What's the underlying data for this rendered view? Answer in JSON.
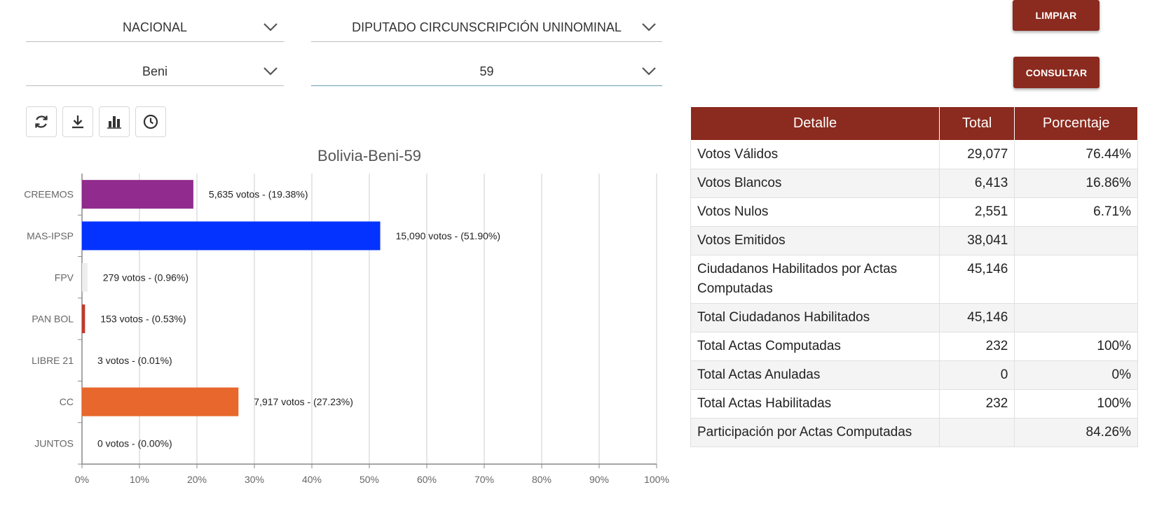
{
  "filters": {
    "scope": "NACIONAL",
    "election": "DIPUTADO CIRCUNSCRIPCIÓN UNINOMINAL",
    "department": "Beni",
    "circunscripcion": "59"
  },
  "actions": {
    "clear_label": "LIMPIAR",
    "query_label": "CONSULTAR"
  },
  "toolbar": {
    "icons": [
      "refresh-icon",
      "download-icon",
      "bar-chart-icon",
      "clock-icon"
    ]
  },
  "colors": {
    "brand": "#8b2a1e",
    "creemos": "#922b8e",
    "mas": "#0433ff",
    "fpv": "#eeeeee",
    "panbol": "#c0392b",
    "libre21": "#cccccc",
    "cc": "#e8672c",
    "juntos": "#cccccc"
  },
  "chart_data": {
    "type": "bar",
    "orientation": "horizontal",
    "title": "Bolivia-Beni-59",
    "categories": [
      "CREEMOS",
      "MAS-IPSP",
      "FPV",
      "PAN BOL",
      "LIBRE 21",
      "CC",
      "JUNTOS"
    ],
    "values": [
      19.38,
      51.9,
      0.96,
      0.53,
      0.01,
      27.23,
      0.0
    ],
    "votes": [
      5635,
      15090,
      279,
      153,
      3,
      7917,
      0
    ],
    "labels": [
      "5,635 votos - (19.38%)",
      "15,090 votos - (51.90%)",
      "279 votos - (0.96%)",
      "153 votos - (0.53%)",
      "3 votos - (0.01%)",
      "7,917 votos - (27.23%)",
      "0 votos - (0.00%)"
    ],
    "bar_colors": [
      "#922b8e",
      "#0433ff",
      "#eeeeee",
      "#c0392b",
      "#cccccc",
      "#e8672c",
      "#cccccc"
    ],
    "xlim": [
      0,
      100
    ],
    "xticks": [
      "0%",
      "10%",
      "20%",
      "30%",
      "40%",
      "50%",
      "60%",
      "70%",
      "80%",
      "90%",
      "100%"
    ],
    "grid": true
  },
  "table": {
    "headers": [
      "Detalle",
      "Total",
      "Porcentaje"
    ],
    "rows": [
      {
        "label": "Votos Válidos",
        "total": "29,077",
        "pct": "76.44%"
      },
      {
        "label": "Votos Blancos",
        "total": "6,413",
        "pct": "16.86%"
      },
      {
        "label": "Votos Nulos",
        "total": "2,551",
        "pct": "6.71%"
      },
      {
        "label": "Votos Emitidos",
        "total": "38,041",
        "pct": ""
      },
      {
        "label": "Ciudadanos Habilitados por Actas Computadas",
        "total": "45,146",
        "pct": ""
      },
      {
        "label": "Total Ciudadanos Habilitados",
        "total": "45,146",
        "pct": ""
      },
      {
        "label": "Total Actas Computadas",
        "total": "232",
        "pct": "100%"
      },
      {
        "label": "Total Actas Anuladas",
        "total": "0",
        "pct": "0%"
      },
      {
        "label": "Total Actas Habilitadas",
        "total": "232",
        "pct": "100%"
      },
      {
        "label": "Participación por Actas Computadas",
        "total": "",
        "pct": "84.26%"
      }
    ]
  }
}
